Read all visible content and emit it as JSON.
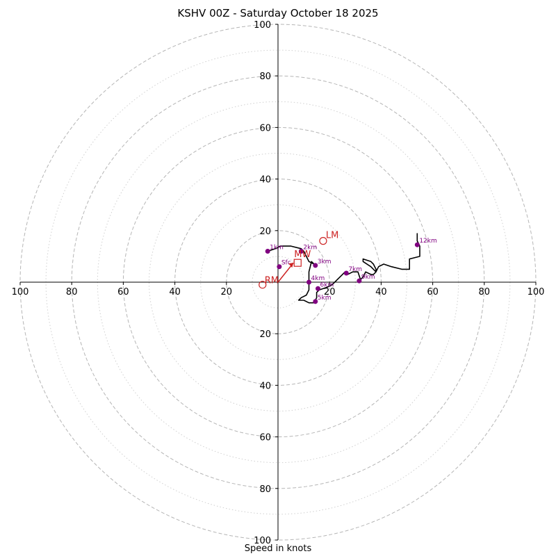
{
  "chart_data": {
    "type": "hodograph",
    "title": "KSHV 00Z - Saturday October 18 2025",
    "xlabel": "Speed in knots",
    "axis_range": [
      -100,
      100
    ],
    "ring_major": [
      20,
      40,
      60,
      80,
      100
    ],
    "ring_minor": [
      10,
      30,
      50,
      70,
      90
    ],
    "tick_labels": [
      "100",
      "80",
      "60",
      "40",
      "20"
    ],
    "colors": {
      "hodograph": "#000000",
      "marker": "#800080",
      "motion": "#cc2222",
      "grid": "#b5b5b5"
    },
    "hodograph_trace": [
      [
        -4,
        12
      ],
      [
        -1,
        13
      ],
      [
        1,
        14
      ],
      [
        5,
        14
      ],
      [
        9,
        13
      ],
      [
        10,
        12
      ],
      [
        11,
        10
      ],
      [
        12,
        8
      ],
      [
        14,
        7
      ],
      [
        15,
        6
      ],
      [
        13,
        8
      ],
      [
        12,
        4
      ],
      [
        12,
        1
      ],
      [
        12,
        -3
      ],
      [
        11,
        -5
      ],
      [
        9,
        -6
      ],
      [
        8,
        -7
      ],
      [
        10,
        -7
      ],
      [
        12,
        -8
      ],
      [
        14,
        -8
      ],
      [
        15,
        -6
      ],
      [
        15,
        -4
      ],
      [
        16,
        -3
      ],
      [
        19,
        -2
      ],
      [
        21,
        -1
      ],
      [
        23,
        1
      ],
      [
        25,
        3
      ],
      [
        26,
        4
      ],
      [
        27,
        3
      ],
      [
        29,
        4
      ],
      [
        31,
        4
      ],
      [
        32,
        1
      ],
      [
        33,
        2
      ],
      [
        34,
        4
      ],
      [
        36,
        3
      ],
      [
        37,
        3
      ],
      [
        38,
        4
      ],
      [
        38,
        5
      ],
      [
        37,
        7
      ],
      [
        36,
        8
      ],
      [
        33,
        9
      ],
      [
        33,
        8
      ],
      [
        36,
        6
      ],
      [
        38,
        4
      ],
      [
        39,
        6
      ],
      [
        41,
        7
      ],
      [
        44,
        6
      ],
      [
        48,
        5
      ],
      [
        51,
        5
      ],
      [
        51,
        9
      ],
      [
        55,
        10
      ],
      [
        55,
        14
      ],
      [
        54,
        16
      ],
      [
        54,
        19
      ]
    ],
    "height_markers": [
      {
        "label": "Sfc",
        "u": 0.5,
        "v": 6
      },
      {
        "label": "1km",
        "u": -4,
        "v": 12
      },
      {
        "label": "2km",
        "u": 9,
        "v": 12
      },
      {
        "label": "3km",
        "u": 14.5,
        "v": 6.5
      },
      {
        "label": "4km",
        "u": 12,
        "v": 0
      },
      {
        "label": "5km",
        "u": 14.5,
        "v": -7.5
      },
      {
        "label": "6km",
        "u": 15.5,
        "v": -2.5
      },
      {
        "label": "7km",
        "u": 26.5,
        "v": 3.5
      },
      {
        "label": "9km",
        "u": 31.5,
        "v": 0.5
      },
      {
        "label": "12km",
        "u": 54,
        "v": 14.5
      }
    ],
    "storm_motion": {
      "rm": {
        "label": "RM",
        "u": -6,
        "v": -1
      },
      "lm": {
        "label": "LM",
        "u": 17.5,
        "v": 16
      },
      "mw": {
        "label": "MW",
        "u": 6,
        "v": 7.5
      }
    }
  }
}
